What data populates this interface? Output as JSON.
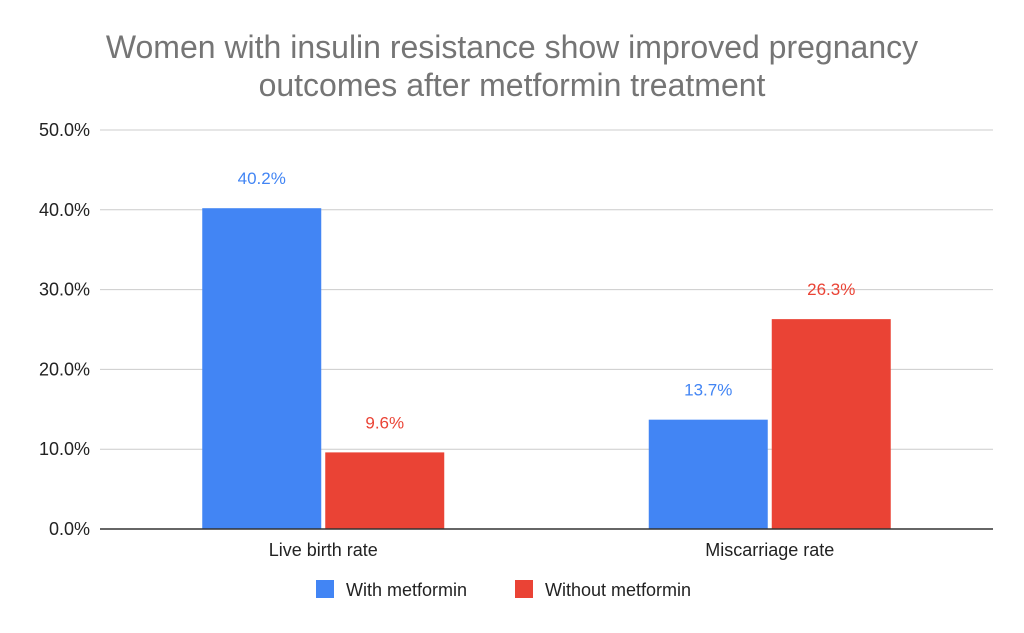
{
  "chart_data": {
    "type": "bar",
    "title_lines": [
      "Women with insulin resistance show improved pregnancy",
      "outcomes after metformin treatment"
    ],
    "categories": [
      "Live birth rate",
      "Miscarriage rate"
    ],
    "series": [
      {
        "name": "With metformin",
        "color": "#4285f4",
        "values": [
          40.2,
          13.7
        ],
        "labels": [
          "40.2%",
          "13.7%"
        ]
      },
      {
        "name": "Without metformin",
        "color": "#ea4335",
        "values": [
          9.6,
          26.3
        ],
        "labels": [
          "9.6%",
          "26.3%"
        ]
      }
    ],
    "ylim": [
      0,
      50
    ],
    "yticks": [
      0,
      10,
      20,
      30,
      40,
      50
    ],
    "ytick_labels": [
      "0.0%",
      "10.0%",
      "20.0%",
      "30.0%",
      "40.0%",
      "50.0%"
    ],
    "xlabel": "",
    "ylabel": "",
    "grid": true,
    "legend_position": "bottom",
    "colors": {
      "grid": "#cccccc",
      "axis": "#333333"
    }
  }
}
